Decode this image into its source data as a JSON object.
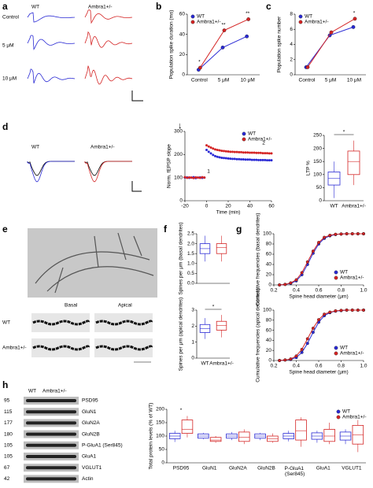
{
  "panel_labels": [
    "a",
    "b",
    "c",
    "d",
    "e",
    "f",
    "g",
    "h"
  ],
  "panel_a": {
    "columns": [
      "WT",
      "Ambra1+/-"
    ],
    "rows": [
      "Control",
      "5 μM",
      "10 μM"
    ]
  },
  "panel_d_traces": {
    "columns": [
      "WT",
      "Ambra1+/-"
    ]
  },
  "panel_e": {
    "columns": [
      "Basal",
      "Apical"
    ],
    "rows": [
      "WT",
      "Ambra1+/-"
    ]
  },
  "panel_h_blot": {
    "columns": [
      "WT",
      "Ambra1+/-"
    ],
    "kda": [
      "95",
      "115",
      "177",
      "180",
      "105",
      "105",
      "67",
      "42"
    ],
    "proteins": [
      "PSD95",
      "GluN1",
      "GluN2A",
      "GluN2B",
      "P-GluA1 (Ser845)",
      "GluA1",
      "VGLUT1",
      "Actin"
    ]
  },
  "chart_data": [
    {
      "type": "line",
      "ylabel": "Population spike duration (ms)",
      "categories": [
        "Control",
        "5 μM",
        "10 μM"
      ],
      "ylim": [
        0,
        60
      ],
      "yticks": [
        0,
        20,
        40,
        60
      ],
      "markers": true,
      "legend": "upper left",
      "annotations": [
        "*",
        "**",
        "**"
      ],
      "series": [
        {
          "name": "WT",
          "color": "#2a2ad4",
          "values": [
            5,
            27,
            38
          ]
        },
        {
          "name": "Ambra1+/-",
          "color": "#d42424",
          "values": [
            7,
            44,
            55
          ]
        }
      ]
    },
    {
      "type": "line",
      "ylabel": "Population spike number",
      "categories": [
        "Control",
        "5 μM",
        "10 μM"
      ],
      "ylim": [
        0,
        8
      ],
      "yticks": [
        0,
        2,
        4,
        6,
        8
      ],
      "markers": true,
      "legend": "upper left",
      "annotations": [
        null,
        null,
        "*"
      ],
      "series": [
        {
          "name": "WT",
          "color": "#2a2ad4",
          "values": [
            1,
            5.2,
            6.3
          ]
        },
        {
          "name": "Ambra1+/-",
          "color": "#d42424",
          "values": [
            1,
            5.6,
            7.4
          ]
        }
      ]
    },
    {
      "type": "scatter",
      "xlabel": "Time (min)",
      "ylabel": "Norm. fEPSP slope",
      "x": [
        -20,
        -18,
        -16,
        -14,
        -12,
        -10,
        -8,
        -6,
        -4,
        -2,
        0,
        2,
        4,
        6,
        8,
        10,
        12,
        14,
        16,
        18,
        20,
        22,
        24,
        26,
        28,
        30,
        32,
        34,
        36,
        38,
        40,
        42,
        44,
        46,
        48,
        50,
        52,
        54,
        56,
        58,
        60
      ],
      "xlim": [
        -20,
        60
      ],
      "xticks": [
        -20,
        0,
        20,
        40,
        60
      ],
      "ylim": [
        0,
        300
      ],
      "yticks": [
        0,
        100,
        200,
        300
      ],
      "legend": "upper right",
      "annotations": [
        "1",
        "2"
      ],
      "series": [
        {
          "name": "WT",
          "color": "#2a2ad4",
          "values": [
            100,
            101,
            99,
            100,
            102,
            98,
            100,
            101,
            99,
            100,
            220,
            212,
            205,
            198,
            193,
            190,
            188,
            186,
            185,
            184,
            183,
            182,
            181,
            181,
            180,
            180,
            179,
            179,
            178,
            178,
            178,
            177,
            177,
            177,
            176,
            176,
            176,
            176,
            175,
            175,
            175
          ]
        },
        {
          "name": "Ambra1+/-",
          "color": "#d42424",
          "values": [
            102,
            99,
            101,
            100,
            98,
            101,
            100,
            99,
            102,
            100,
            240,
            235,
            230,
            226,
            222,
            220,
            218,
            216,
            215,
            214,
            213,
            212,
            212,
            211,
            211,
            210,
            210,
            209,
            209,
            209,
            208,
            208,
            208,
            207,
            207,
            207,
            206,
            206,
            206,
            205,
            205
          ]
        }
      ]
    },
    {
      "type": "box",
      "ylabel": "LTP %",
      "ylim": [
        0,
        250
      ],
      "yticks": [
        0,
        50,
        100,
        150,
        200,
        250
      ],
      "annotations": [
        "*"
      ],
      "series": [
        {
          "name": "WT",
          "color": "#2a2ad4",
          "min": 10,
          "q1": 60,
          "median": 85,
          "q3": 110,
          "max": 150
        },
        {
          "name": "Ambra1+/-",
          "color": "#d42424",
          "min": 60,
          "q1": 100,
          "median": 150,
          "q3": 190,
          "max": 230
        }
      ]
    },
    {
      "type": "box",
      "ylabel": "Spines per μm (basal dendrites)",
      "ylim": [
        0,
        2.5
      ],
      "yticks": [
        {
          "value": 0,
          "label": "0.0"
        },
        0.5,
        {
          "value": 1,
          "label": "1.0"
        },
        1.5,
        {
          "value": 2,
          "label": "2.0"
        },
        2.5
      ],
      "series": [
        {
          "color": "#2a2ad4",
          "min": 1.1,
          "q1": 1.5,
          "median": 1.75,
          "q3": 2.0,
          "max": 2.4
        },
        {
          "color": "#d42424",
          "min": 1.1,
          "q1": 1.5,
          "median": 1.8,
          "q3": 2.0,
          "max": 2.4
        }
      ]
    },
    {
      "type": "box",
      "ylabel": "Spines per μm (apical dendrites)",
      "ylim": [
        0,
        3
      ],
      "yticks": [
        0,
        1,
        2,
        3
      ],
      "annotations": [
        "*"
      ],
      "series": [
        {
          "name": "WT",
          "color": "#2a2ad4",
          "min": 1.2,
          "q1": 1.6,
          "median": 1.85,
          "q3": 2.1,
          "max": 2.5
        },
        {
          "name": "Ambra1+/-",
          "color": "#d42424",
          "min": 1.3,
          "q1": 1.75,
          "median": 2.05,
          "q3": 2.3,
          "max": 2.7
        }
      ]
    },
    {
      "type": "line",
      "xlabel": "Spine head diameter (μm)",
      "ylabel": "Cumulative frequencies (basal dendrites)",
      "x": [
        0.25,
        0.3,
        0.35,
        0.4,
        0.45,
        0.5,
        0.55,
        0.6,
        0.65,
        0.7,
        0.75,
        0.8,
        0.85,
        0.9,
        0.95,
        1.0
      ],
      "xlim": [
        0.2,
        1.0
      ],
      "xticks": [
        0.2,
        0.4,
        0.6,
        0.8,
        {
          "value": 1,
          "label": "1.0"
        }
      ],
      "ylim": [
        0,
        100
      ],
      "yticks": [
        0,
        20,
        40,
        60,
        80,
        100
      ],
      "markers": true,
      "legend": "lower right",
      "series": [
        {
          "name": "WT",
          "color": "#2a2ad4",
          "values": [
            0,
            1,
            3,
            8,
            20,
            40,
            62,
            80,
            91,
            96,
            98.5,
            99.5,
            100,
            100,
            100,
            100
          ]
        },
        {
          "name": "Ambra1+/-",
          "color": "#d42424",
          "values": [
            0,
            1,
            4,
            10,
            24,
            45,
            66,
            83,
            93,
            97,
            99,
            99.5,
            100,
            100,
            100,
            100
          ]
        }
      ]
    },
    {
      "type": "line",
      "xlabel": "Spine head diameter (μm)",
      "ylabel": "Cumulative frequencies (apical dendrites)",
      "x": [
        0.25,
        0.3,
        0.35,
        0.4,
        0.45,
        0.5,
        0.55,
        0.6,
        0.65,
        0.7,
        0.75,
        0.8,
        0.85,
        0.9,
        0.95,
        1.0
      ],
      "xlim": [
        0.2,
        1.0
      ],
      "xticks": [
        0.2,
        0.4,
        0.6,
        0.8,
        {
          "value": 1,
          "label": "1.0"
        }
      ],
      "ylim": [
        0,
        100
      ],
      "yticks": [
        0,
        20,
        40,
        60,
        80,
        100
      ],
      "markers": true,
      "legend": "lower right",
      "series": [
        {
          "name": "WT",
          "color": "#2a2ad4",
          "values": [
            0,
            1,
            2,
            6,
            16,
            34,
            56,
            76,
            89,
            95,
            98,
            99,
            100,
            100,
            100,
            100
          ]
        },
        {
          "name": "Ambra1+/-",
          "color": "#d42424",
          "values": [
            0,
            1,
            3,
            9,
            22,
            43,
            64,
            81,
            92,
            96,
            98.5,
            99.5,
            100,
            100,
            100,
            100
          ]
        }
      ]
    },
    {
      "type": "box",
      "ylabel": "Total protein levels (% of WT)",
      "categories": [
        "PSD95",
        "GluN1",
        "GluN2A",
        "GluN2B",
        "P-GluA1 (Ser845)",
        "GluA1",
        "VGLUT1"
      ],
      "ylim": [
        0,
        200
      ],
      "yticks": [
        0,
        50,
        100,
        150,
        200
      ],
      "legend": "upper right",
      "annotations": [
        "*",
        null,
        null,
        null,
        null,
        null,
        null
      ],
      "series": [
        {
          "name": "WT",
          "color": "#2a2ad4",
          "min": [
            78,
            88,
            85,
            85,
            80,
            75,
            70
          ],
          "q1": [
            90,
            92,
            92,
            92,
            90,
            88,
            85
          ],
          "median": [
            100,
            100,
            100,
            100,
            100,
            100,
            100
          ],
          "q3": [
            110,
            108,
            108,
            108,
            110,
            112,
            115
          ],
          "max": [
            120,
            112,
            115,
            112,
            120,
            120,
            125
          ]
        },
        {
          "name": "Ambra1+/-",
          "color": "#d42424",
          "min": [
            95,
            75,
            70,
            75,
            60,
            70,
            40
          ],
          "q1": [
            110,
            80,
            80,
            80,
            85,
            80,
            70
          ],
          "median": [
            125,
            85,
            95,
            90,
            120,
            100,
            105
          ],
          "q3": [
            160,
            95,
            115,
            100,
            160,
            125,
            140
          ],
          "max": [
            175,
            100,
            125,
            110,
            170,
            150,
            160
          ]
        }
      ]
    }
  ]
}
